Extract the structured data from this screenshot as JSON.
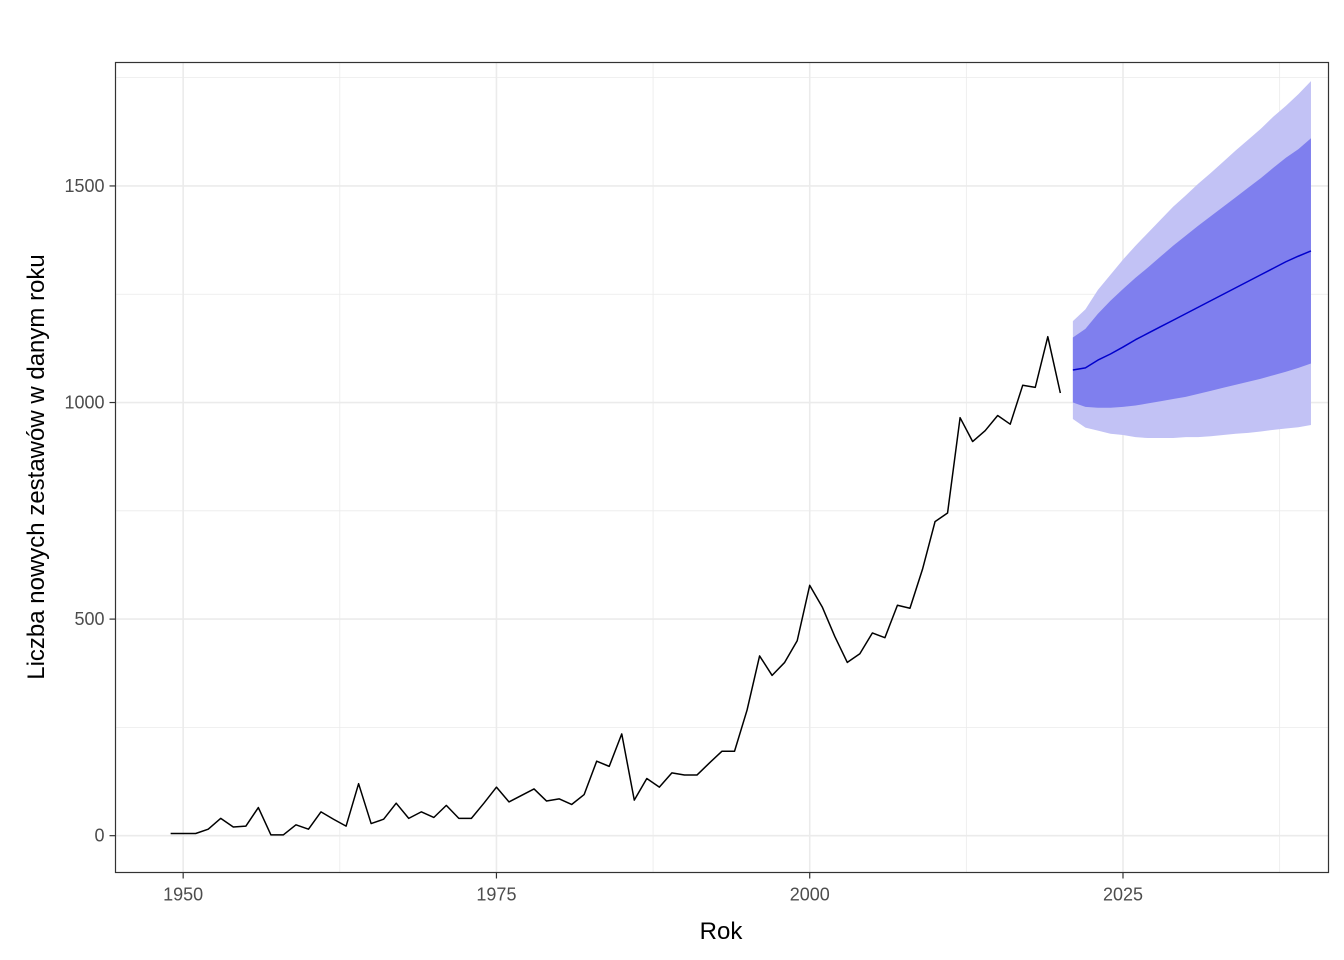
{
  "chart_data": {
    "type": "line",
    "title": "",
    "xlabel": "Rok",
    "ylabel": "Liczba nowych zestawów w danym roku",
    "xlim": [
      1944.6,
      2041.4
    ],
    "ylim": [
      -85,
      1785
    ],
    "x_ticks": [
      1950,
      1975,
      2000,
      2025
    ],
    "y_ticks": [
      0,
      500,
      1000,
      1500
    ],
    "x_tick_labels": [
      "1950",
      "1975",
      "2000",
      "2025"
    ],
    "y_tick_labels": [
      "0",
      "500",
      "1000",
      "1500"
    ],
    "grid": true,
    "legend": "none",
    "colors": {
      "history_line": "#000000",
      "forecast_line": "#0000cc",
      "band_80": "#7f7fee",
      "band_95": "#c2c2f5",
      "grid": "#ebebeb",
      "panel_border": "#333333"
    },
    "series": [
      {
        "x": [
          1949,
          1950,
          1951,
          1952,
          1953,
          1954,
          1955,
          1956,
          1957,
          1958,
          1959,
          1960,
          1961,
          1962,
          1963,
          1964,
          1965,
          1966,
          1967,
          1968,
          1969,
          1970,
          1971,
          1972,
          1973,
          1974,
          1975,
          1976,
          1977,
          1978,
          1979,
          1980,
          1981,
          1982,
          1983,
          1984,
          1985,
          1986,
          1987,
          1988,
          1989,
          1990,
          1991,
          1992,
          1993,
          1994,
          1995,
          1996,
          1997,
          1998,
          1999,
          2000,
          2001,
          2002,
          2003,
          2004,
          2005,
          2006,
          2007,
          2008,
          2009,
          2010,
          2011,
          2012,
          2013,
          2014,
          2015,
          2016,
          2017,
          2018,
          2019,
          2020
        ],
        "values": [
          5,
          5,
          5,
          15,
          40,
          20,
          22,
          65,
          2,
          2,
          25,
          15,
          55,
          38,
          22,
          120,
          28,
          38,
          75,
          40,
          55,
          42,
          70,
          40,
          40,
          75,
          112,
          78,
          93,
          108,
          80,
          85,
          72,
          95,
          172,
          160,
          235,
          82,
          132,
          112,
          145,
          140,
          140,
          168,
          195,
          195,
          290,
          415,
          370,
          400,
          450,
          578,
          528,
          460,
          400,
          420,
          468,
          457,
          532,
          525,
          615,
          725,
          745,
          965,
          910,
          935,
          970,
          950,
          1040,
          1035,
          1152,
          1022
        ]
      },
      {
        "x": [
          2021,
          2022,
          2023,
          2024,
          2025,
          2026,
          2027,
          2028,
          2029,
          2030,
          2031,
          2032,
          2033,
          2034,
          2035,
          2036,
          2037,
          2038,
          2039,
          2040
        ],
        "values": [
          1075,
          1080,
          1098,
          1112,
          1128,
          1145,
          1160,
          1175,
          1190,
          1205,
          1220,
          1235,
          1250,
          1265,
          1280,
          1295,
          1310,
          1325,
          1338,
          1350
        ]
      },
      {
        "x": [
          2021,
          2022,
          2023,
          2024,
          2025,
          2026,
          2027,
          2028,
          2029,
          2030,
          2031,
          2032,
          2033,
          2034,
          2035,
          2036,
          2037,
          2038,
          2039,
          2040
        ],
        "lower": [
          1000,
          990,
          988,
          988,
          990,
          993,
          998,
          1003,
          1008,
          1013,
          1020,
          1027,
          1034,
          1041,
          1048,
          1055,
          1063,
          1071,
          1080,
          1090
        ],
        "upper": [
          1150,
          1170,
          1205,
          1235,
          1262,
          1288,
          1312,
          1337,
          1362,
          1385,
          1408,
          1430,
          1452,
          1474,
          1496,
          1518,
          1542,
          1565,
          1585,
          1610
        ]
      },
      {
        "x": [
          2021,
          2022,
          2023,
          2024,
          2025,
          2026,
          2027,
          2028,
          2029,
          2030,
          2031,
          2032,
          2033,
          2034,
          2035,
          2036,
          2037,
          2038,
          2039,
          2040
        ],
        "lower": [
          962,
          942,
          935,
          928,
          925,
          920,
          918,
          918,
          918,
          920,
          920,
          922,
          925,
          928,
          930,
          933,
          937,
          940,
          943,
          948
        ],
        "upper": [
          1188,
          1215,
          1260,
          1295,
          1330,
          1362,
          1392,
          1422,
          1452,
          1478,
          1505,
          1530,
          1556,
          1582,
          1607,
          1632,
          1660,
          1685,
          1712,
          1742
        ]
      }
    ]
  }
}
